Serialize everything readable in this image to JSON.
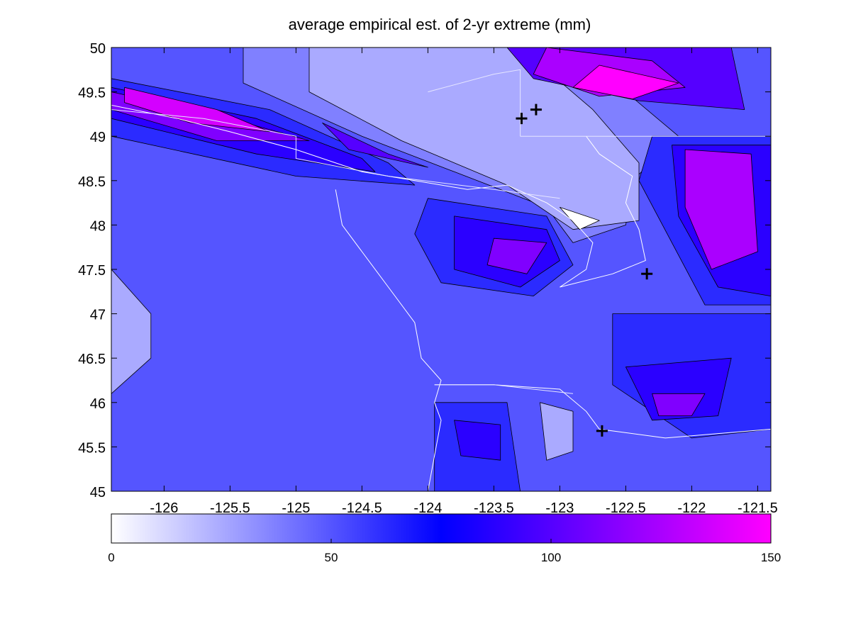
{
  "chart_data": {
    "type": "heatmap",
    "subtype": "filled-contour map",
    "title": "average empirical est. of 2-yr extreme (mm)",
    "xlabel": "",
    "ylabel": "",
    "xlim": [
      -126.4,
      -121.4
    ],
    "ylim": [
      45,
      50
    ],
    "x_ticks": [
      -126,
      -125.5,
      -125,
      -124.5,
      -124,
      -123.5,
      -123,
      -122.5,
      -122,
      -121.5
    ],
    "y_ticks": [
      45,
      45.5,
      46,
      46.5,
      47,
      47.5,
      48,
      48.5,
      49,
      49.5,
      50
    ],
    "grid": false,
    "colorbar": {
      "placement": "bottom",
      "range": [
        0,
        150
      ],
      "ticks": [
        0,
        50,
        100,
        150
      ],
      "stops": [
        "#ffffff",
        "#0000ff",
        "#ff00ff"
      ]
    },
    "contour_levels": [
      0,
      12.5,
      25,
      37.5,
      50,
      62.5,
      75,
      87.5,
      100,
      112.5,
      125,
      137.5,
      150
    ],
    "regions": [
      {
        "level": 62.5,
        "points": [
          [
            -126.4,
            49.65
          ],
          [
            -125.2,
            49.3
          ],
          [
            -124.3,
            48.7
          ],
          [
            -124.1,
            48.45
          ],
          [
            -125.0,
            48.55
          ],
          [
            -126.4,
            49.0
          ]
        ]
      },
      {
        "level": 87.5,
        "points": [
          [
            -126.4,
            49.55
          ],
          [
            -125.3,
            49.2
          ],
          [
            -124.5,
            48.75
          ],
          [
            -124.4,
            48.6
          ],
          [
            -125.3,
            48.8
          ],
          [
            -126.4,
            49.2
          ]
        ]
      },
      {
        "level": 112.5,
        "points": [
          [
            -126.4,
            49.5
          ],
          [
            -125.5,
            49.2
          ],
          [
            -124.9,
            48.95
          ],
          [
            -125.6,
            48.95
          ],
          [
            -126.4,
            49.3
          ]
        ]
      },
      {
        "level": 137.5,
        "points": [
          [
            -126.3,
            49.55
          ],
          [
            -125.6,
            49.3
          ],
          [
            -125.2,
            49.05
          ],
          [
            -125.8,
            49.15
          ],
          [
            -126.3,
            49.38
          ]
        ]
      },
      {
        "level": 100,
        "points": [
          [
            -124.8,
            49.15
          ],
          [
            -124.3,
            48.8
          ],
          [
            -124.0,
            48.65
          ],
          [
            -124.6,
            48.85
          ]
        ]
      },
      {
        "level": 37.5,
        "points": [
          [
            -125.4,
            50
          ],
          [
            -123.1,
            50
          ],
          [
            -122.5,
            49.5
          ],
          [
            -122.1,
            49.0
          ],
          [
            -122.45,
            48.5
          ],
          [
            -122.5,
            48.0
          ],
          [
            -122.9,
            47.8
          ],
          [
            -123.1,
            48.2
          ],
          [
            -123.8,
            48.6
          ],
          [
            -124.5,
            49.0
          ],
          [
            -125.4,
            49.6
          ]
        ]
      },
      {
        "level": 25,
        "points": [
          [
            -124.9,
            50
          ],
          [
            -123.3,
            50
          ],
          [
            -122.75,
            49.3
          ],
          [
            -122.4,
            48.7
          ],
          [
            -122.4,
            48.05
          ],
          [
            -122.9,
            47.95
          ],
          [
            -123.4,
            48.45
          ],
          [
            -124.2,
            48.95
          ],
          [
            -124.9,
            49.5
          ]
        ]
      },
      {
        "level": 0,
        "points": [
          [
            -123.0,
            48.2
          ],
          [
            -122.7,
            48.05
          ],
          [
            -122.85,
            47.95
          ]
        ]
      },
      {
        "level": 100,
        "points": [
          [
            -123.4,
            50
          ],
          [
            -121.7,
            50
          ],
          [
            -121.6,
            49.3
          ],
          [
            -122.4,
            49.4
          ],
          [
            -123.2,
            49.65
          ]
        ]
      },
      {
        "level": 125,
        "points": [
          [
            -123.1,
            50
          ],
          [
            -122.3,
            49.85
          ],
          [
            -122.05,
            49.55
          ],
          [
            -122.7,
            49.45
          ],
          [
            -123.2,
            49.7
          ]
        ]
      },
      {
        "level": 150,
        "points": [
          [
            -122.7,
            49.8
          ],
          [
            -122.1,
            49.6
          ],
          [
            -122.45,
            49.42
          ],
          [
            -122.9,
            49.55
          ]
        ]
      },
      {
        "level": 62.5,
        "points": [
          [
            -124.0,
            48.3
          ],
          [
            -123.1,
            48.1
          ],
          [
            -122.9,
            47.55
          ],
          [
            -123.2,
            47.2
          ],
          [
            -123.9,
            47.35
          ],
          [
            -124.1,
            47.9
          ]
        ]
      },
      {
        "level": 87.5,
        "points": [
          [
            -123.8,
            48.1
          ],
          [
            -123.1,
            47.95
          ],
          [
            -123.0,
            47.6
          ],
          [
            -123.3,
            47.3
          ],
          [
            -123.8,
            47.5
          ]
        ]
      },
      {
        "level": 112.5,
        "points": [
          [
            -123.5,
            47.85
          ],
          [
            -123.1,
            47.8
          ],
          [
            -123.25,
            47.45
          ],
          [
            -123.55,
            47.55
          ]
        ]
      },
      {
        "level": 62.5,
        "points": [
          [
            -122.3,
            49.0
          ],
          [
            -121.4,
            49.0
          ],
          [
            -121.4,
            47.1
          ],
          [
            -121.9,
            47.1
          ],
          [
            -122.15,
            47.8
          ],
          [
            -122.4,
            48.5
          ]
        ]
      },
      {
        "level": 87.5,
        "points": [
          [
            -122.15,
            48.9
          ],
          [
            -121.4,
            48.9
          ],
          [
            -121.4,
            47.2
          ],
          [
            -121.8,
            47.3
          ],
          [
            -122.1,
            48.1
          ]
        ]
      },
      {
        "level": 125,
        "points": [
          [
            -122.05,
            48.85
          ],
          [
            -121.55,
            48.8
          ],
          [
            -121.5,
            47.7
          ],
          [
            -121.85,
            47.5
          ],
          [
            -122.05,
            48.2
          ]
        ]
      },
      {
        "level": 62.5,
        "points": [
          [
            -122.6,
            47.0
          ],
          [
            -121.4,
            47.0
          ],
          [
            -121.4,
            45.7
          ],
          [
            -122.0,
            45.6
          ],
          [
            -122.6,
            46.2
          ]
        ]
      },
      {
        "level": 87.5,
        "points": [
          [
            -122.5,
            46.4
          ],
          [
            -121.7,
            46.5
          ],
          [
            -121.8,
            45.85
          ],
          [
            -122.3,
            45.8
          ]
        ]
      },
      {
        "level": 112.5,
        "points": [
          [
            -122.3,
            46.1
          ],
          [
            -121.9,
            46.1
          ],
          [
            -122.0,
            45.85
          ],
          [
            -122.25,
            45.85
          ]
        ]
      },
      {
        "level": 62.5,
        "points": [
          [
            -123.95,
            46.0
          ],
          [
            -123.4,
            46.0
          ],
          [
            -123.3,
            45.0
          ],
          [
            -123.95,
            45.0
          ]
        ]
      },
      {
        "level": 87.5,
        "points": [
          [
            -123.8,
            45.8
          ],
          [
            -123.45,
            45.75
          ],
          [
            -123.45,
            45.35
          ],
          [
            -123.75,
            45.4
          ]
        ]
      },
      {
        "level": 25,
        "points": [
          [
            -123.15,
            46.0
          ],
          [
            -122.9,
            45.9
          ],
          [
            -122.9,
            45.45
          ],
          [
            -123.1,
            45.35
          ]
        ]
      },
      {
        "level": 25,
        "points": [
          [
            -126.4,
            47.5
          ],
          [
            -126.1,
            47.0
          ],
          [
            -126.1,
            46.5
          ],
          [
            -126.4,
            46.1
          ]
        ]
      }
    ],
    "coastlines": [
      [
        [
          -126.4,
          49.35
        ],
        [
          -125.9,
          49.2
        ],
        [
          -125.5,
          49.05
        ],
        [
          -125.0,
          48.85
        ],
        [
          -124.5,
          48.6
        ],
        [
          -124.1,
          48.5
        ],
        [
          -123.7,
          48.4
        ],
        [
          -123.4,
          48.45
        ],
        [
          -123.1,
          48.25
        ],
        [
          -122.9,
          48.05
        ],
        [
          -122.75,
          47.8
        ],
        [
          -122.8,
          47.5
        ],
        [
          -123.0,
          47.3
        ],
        [
          -122.6,
          47.45
        ],
        [
          -122.35,
          47.6
        ],
        [
          -122.4,
          47.95
        ],
        [
          -122.5,
          48.25
        ],
        [
          -122.45,
          48.55
        ],
        [
          -122.7,
          48.8
        ],
        [
          -122.8,
          49.0
        ]
      ],
      [
        [
          -124.7,
          48.4
        ],
        [
          -124.65,
          48.0
        ],
        [
          -124.5,
          47.7
        ],
        [
          -124.3,
          47.3
        ],
        [
          -124.1,
          46.9
        ],
        [
          -124.05,
          46.5
        ],
        [
          -123.9,
          46.25
        ],
        [
          -123.95,
          46.0
        ],
        [
          -123.9,
          45.8
        ],
        [
          -123.95,
          45.4
        ],
        [
          -124.0,
          45.0
        ]
      ],
      [
        [
          -123.95,
          46.2
        ],
        [
          -123.5,
          46.2
        ],
        [
          -123.0,
          46.15
        ],
        [
          -122.8,
          45.9
        ],
        [
          -122.7,
          45.7
        ],
        [
          -122.2,
          45.6
        ],
        [
          -121.4,
          45.7
        ]
      ]
    ],
    "borders": [
      [
        [
          -126.4,
          49.3
        ],
        [
          -125.7,
          49.2
        ],
        [
          -125.0,
          49.0
        ],
        [
          -125.0,
          48.75
        ],
        [
          -124.3,
          48.55
        ],
        [
          -123.5,
          48.4
        ],
        [
          -123.0,
          48.3
        ]
      ],
      [
        [
          -123.3,
          49.0
        ],
        [
          -123.1,
          49.0
        ],
        [
          -121.4,
          49.0
        ]
      ],
      [
        [
          -123.3,
          49.0
        ],
        [
          -123.3,
          49.75
        ],
        [
          -123.5,
          49.7
        ],
        [
          -124.0,
          49.5
        ]
      ],
      [
        [
          -123.95,
          46.2
        ],
        [
          -123.5,
          46.2
        ],
        [
          -122.9,
          46.1
        ]
      ]
    ],
    "markers": [
      {
        "x": -123.29,
        "y": 49.2
      },
      {
        "x": -123.18,
        "y": 49.3
      },
      {
        "x": -122.34,
        "y": 47.45
      },
      {
        "x": -122.68,
        "y": 45.68
      }
    ]
  }
}
